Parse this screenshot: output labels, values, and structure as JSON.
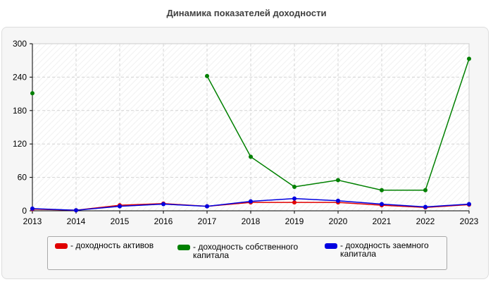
{
  "title": "Динамика показателей доходности",
  "chart_data": {
    "type": "line",
    "title": "Динамика показателей доходности",
    "x": [
      "2013",
      "2014",
      "2015",
      "2016",
      "2017",
      "2018",
      "2019",
      "2020",
      "2021",
      "2022",
      "2023"
    ],
    "ylim": [
      0,
      300
    ],
    "yticks": [
      0,
      60,
      120,
      180,
      240,
      300
    ],
    "grid": true,
    "legend": "bottom",
    "series": [
      {
        "name": "- доходность активов",
        "color": "#e00000",
        "values": [
          3,
          1,
          10,
          13,
          8,
          15,
          15,
          15,
          10,
          6,
          11
        ]
      },
      {
        "name": "- доходность собственного капитала",
        "color": "#008000",
        "values": [
          211,
          null,
          null,
          null,
          242,
          97,
          43,
          55,
          37,
          37,
          273
        ]
      },
      {
        "name": "- доходность заемного капитала",
        "color": "#0000e0",
        "values": [
          4,
          1,
          8,
          12,
          8,
          17,
          22,
          18,
          12,
          7,
          12
        ]
      }
    ]
  }
}
